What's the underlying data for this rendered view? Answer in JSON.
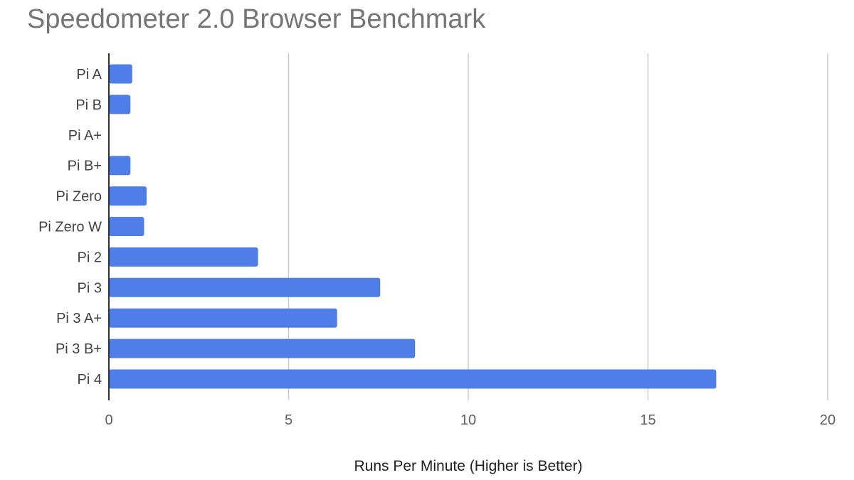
{
  "chart_data": {
    "type": "bar",
    "orientation": "horizontal",
    "title": "Speedometer 2.0 Browser Benchmark",
    "xlabel": "Runs Per Minute (Higher is Better)",
    "ylabel": "",
    "categories": [
      "Pi A",
      "Pi B",
      "Pi A+",
      "Pi B+",
      "Pi Zero",
      "Pi Zero W",
      "Pi 2",
      "Pi 3",
      "Pi 3 A+",
      "Pi 3 B+",
      "Pi 4"
    ],
    "values": [
      0.65,
      0.6,
      0,
      0.6,
      1.05,
      0.98,
      4.15,
      7.55,
      6.35,
      8.52,
      16.9
    ],
    "xlim": [
      0,
      20
    ],
    "xticks": [
      0,
      5,
      10,
      15,
      20
    ],
    "grid": "vertical",
    "legend": "none",
    "bar_color": "#4f7ee8",
    "grid_color": "#cccccc",
    "axis_color": "#333333"
  }
}
